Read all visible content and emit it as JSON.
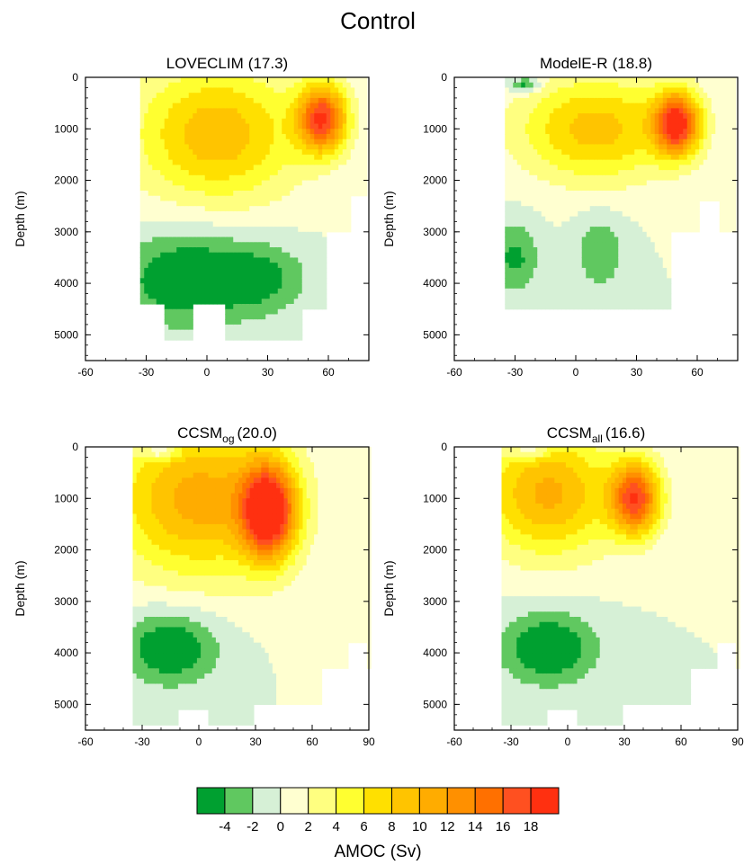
{
  "figure_title": "Control",
  "colors": {
    "palette": [
      "#00a030",
      "#60c860",
      "#d6f0d6",
      "#ffffd0",
      "#ffff80",
      "#ffff30",
      "#ffe000",
      "#ffc400",
      "#ffac00",
      "#ff9000",
      "#ff7000",
      "#ff5020",
      "#ff3010"
    ]
  },
  "colorbar": {
    "labels": [
      "-4",
      "-2",
      "0",
      "2",
      "4",
      "6",
      "8",
      "10",
      "12",
      "14",
      "16",
      "18"
    ],
    "title": "AMOC (Sv)"
  },
  "chart_data": [
    {
      "type": "heatmap",
      "title": "LOVECLIM (17.3)",
      "title_main": "LOVECLIM",
      "title_sub": "",
      "title_value": "(17.3)",
      "ylabel": "Depth (m)",
      "xlabel": "",
      "xlim": [
        -60,
        80
      ],
      "ylim": [
        5500,
        0
      ],
      "xticks": [
        "-60",
        "-30",
        "0",
        "30",
        "60"
      ],
      "xtick_values": [
        -60,
        -30,
        0,
        30,
        60
      ],
      "yticks": [
        "0",
        "1000",
        "2000",
        "3000",
        "4000",
        "5000"
      ],
      "ytick_values": [
        0,
        1000,
        2000,
        3000,
        4000,
        5000
      ],
      "max_sv": 17.3,
      "x_extent": [
        -33,
        78
      ],
      "bottom_profile": [
        [
          -33,
          4400
        ],
        [
          -20,
          5100
        ],
        [
          -6,
          5100
        ],
        [
          -6,
          4400
        ],
        [
          10,
          4400
        ],
        [
          10,
          5100
        ],
        [
          38,
          5100
        ],
        [
          48,
          4500
        ],
        [
          60,
          3000
        ],
        [
          72,
          2300
        ]
      ],
      "features": [
        {
          "lat": 57,
          "depth": 800,
          "amp": 17.3,
          "sx": 12,
          "sy": 650
        },
        {
          "lat": 5,
          "depth": 1100,
          "amp": 9.5,
          "sx": 40,
          "sy": 1300
        },
        {
          "lat": -10,
          "depth": 3900,
          "amp": -6.5,
          "sx": 32,
          "sy": 900
        },
        {
          "lat": 28,
          "depth": 3900,
          "amp": -4,
          "sx": 22,
          "sy": 700
        }
      ]
    },
    {
      "type": "heatmap",
      "title": "ModelE-R (18.8)",
      "title_main": "ModelE-R",
      "title_sub": "",
      "title_value": "(18.8)",
      "ylabel": "Depth (m)",
      "xlabel": "",
      "xlim": [
        -60,
        80
      ],
      "ylim": [
        5500,
        0
      ],
      "xticks": [
        "-60",
        "-30",
        "0",
        "30",
        "60"
      ],
      "xtick_values": [
        -60,
        -30,
        0,
        30,
        60
      ],
      "yticks": [
        "0",
        "1000",
        "2000",
        "3000",
        "4000",
        "5000"
      ],
      "ytick_values": [
        0,
        1000,
        2000,
        3000,
        4000,
        5000
      ],
      "max_sv": 18.8,
      "x_extent": [
        -35,
        78
      ],
      "bottom_profile": [
        [
          -35,
          4500
        ],
        [
          47,
          4500
        ],
        [
          47,
          3000
        ],
        [
          62,
          2400
        ],
        [
          72,
          3000
        ]
      ],
      "features": [
        {
          "lat": 50,
          "depth": 900,
          "amp": 18.8,
          "sx": 11,
          "sy": 600
        },
        {
          "lat": 10,
          "depth": 1000,
          "amp": 9,
          "sx": 38,
          "sy": 1000
        },
        {
          "lat": -25,
          "depth": 150,
          "amp": -6,
          "sx": 8,
          "sy": 150
        },
        {
          "lat": -30,
          "depth": 3500,
          "amp": -4.5,
          "sx": 12,
          "sy": 700
        },
        {
          "lat": 12,
          "depth": 3400,
          "amp": -4,
          "sx": 12,
          "sy": 700
        }
      ]
    },
    {
      "type": "heatmap",
      "title": "CCSMog (20.0)",
      "title_main": "CCSM",
      "title_sub": "og",
      "title_value": "(20.0)",
      "ylabel": "Depth (m)",
      "xlabel": "",
      "xlim": [
        -60,
        90
      ],
      "ylim": [
        5500,
        0
      ],
      "xticks": [
        "-60",
        "-30",
        "0",
        "30",
        "60",
        "90"
      ],
      "xtick_values": [
        -60,
        -30,
        0,
        30,
        60,
        90
      ],
      "yticks": [
        "0",
        "1000",
        "2000",
        "3000",
        "4000",
        "5000"
      ],
      "ytick_values": [
        0,
        1000,
        2000,
        3000,
        4000,
        5000
      ],
      "max_sv": 20.0,
      "x_extent": [
        -35,
        90
      ],
      "bottom_profile": [
        [
          -35,
          5400
        ],
        [
          -10,
          5100
        ],
        [
          5,
          5400
        ],
        [
          20,
          5400
        ],
        [
          30,
          5000
        ],
        [
          55,
          5000
        ],
        [
          65,
          4300
        ],
        [
          80,
          3800
        ],
        [
          90,
          4300
        ]
      ],
      "features": [
        {
          "lat": 37,
          "depth": 1250,
          "amp": 20,
          "sx": 14,
          "sy": 900
        },
        {
          "lat": 0,
          "depth": 1000,
          "amp": 11,
          "sx": 45,
          "sy": 1500
        },
        {
          "lat": -15,
          "depth": 3900,
          "amp": -6.5,
          "sx": 25,
          "sy": 700
        },
        {
          "lat": -20,
          "depth": 100,
          "amp": -5,
          "sx": 10,
          "sy": 150
        }
      ]
    },
    {
      "type": "heatmap",
      "title": "CCSMall (16.6)",
      "title_main": "CCSM",
      "title_sub": "all",
      "title_value": "(16.6)",
      "ylabel": "Depth (m)",
      "xlabel": "",
      "xlim": [
        -60,
        90
      ],
      "ylim": [
        5500,
        0
      ],
      "xticks": [
        "-60",
        "-30",
        "0",
        "30",
        "60",
        "90"
      ],
      "xtick_values": [
        -60,
        -30,
        0,
        30,
        60,
        90
      ],
      "yticks": [
        "0",
        "1000",
        "2000",
        "3000",
        "4000",
        "5000"
      ],
      "ytick_values": [
        0,
        1000,
        2000,
        3000,
        4000,
        5000
      ],
      "max_sv": 16.6,
      "x_extent": [
        -35,
        90
      ],
      "bottom_profile": [
        [
          -35,
          5400
        ],
        [
          -10,
          5100
        ],
        [
          5,
          5400
        ],
        [
          20,
          5400
        ],
        [
          30,
          5000
        ],
        [
          55,
          5000
        ],
        [
          65,
          4300
        ],
        [
          80,
          3800
        ],
        [
          90,
          4300
        ]
      ],
      "features": [
        {
          "lat": 36,
          "depth": 1000,
          "amp": 16.6,
          "sx": 13,
          "sy": 700
        },
        {
          "lat": -10,
          "depth": 900,
          "amp": 10.5,
          "sx": 35,
          "sy": 1200
        },
        {
          "lat": -10,
          "depth": 3900,
          "amp": -6.5,
          "sx": 25,
          "sy": 700
        },
        {
          "lat": -20,
          "depth": 100,
          "amp": -5,
          "sx": 10,
          "sy": 150
        }
      ]
    }
  ]
}
